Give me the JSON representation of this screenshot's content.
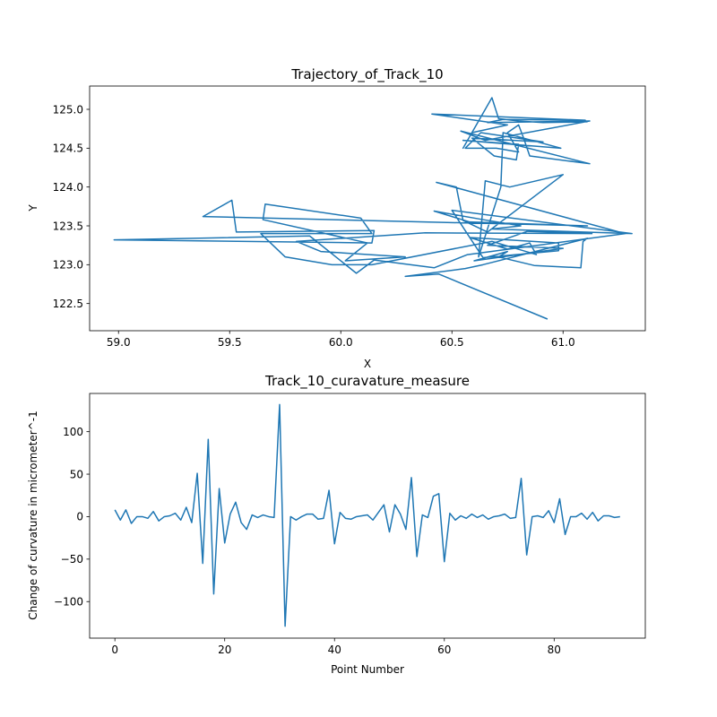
{
  "chart_data": [
    {
      "type": "line",
      "title": "Trajectory_of_Track_10",
      "xlabel": "X",
      "ylabel": "Y",
      "xlim": [
        58.87,
        61.37
      ],
      "ylim": [
        122.15,
        125.3
      ],
      "xticks": [
        59.0,
        59.5,
        60.0,
        60.5,
        61.0
      ],
      "xtick_labels": [
        "59.0",
        "59.5",
        "60.0",
        "60.5",
        "61.0"
      ],
      "yticks": [
        122.5,
        123.0,
        123.5,
        124.0,
        124.5,
        125.0
      ],
      "ytick_labels": [
        "122.5",
        "123.0",
        "123.5",
        "124.0",
        "124.5",
        "125.0"
      ],
      "color": "#1f77b4",
      "series": [
        {
          "x": [
            60.93,
            60.44,
            60.29,
            60.56,
            60.64,
            61.11,
            61.09,
            61.08,
            60.87,
            60.71,
            60.75,
            60.6,
            61.0,
            60.66,
            60.84,
            61.13,
            60.38,
            59.8,
            59.91,
            60.29,
            60.02,
            60.12,
            59.65,
            59.66,
            60.09,
            60.14,
            59.64,
            59.75,
            59.96,
            60.14,
            60.68,
            60.88,
            60.85,
            60.75,
            60.58,
            60.98,
            60.98,
            60.64,
            60.5,
            61.31,
            60.68,
            60.81,
            60.64,
            60.42,
            60.58,
            61.11,
            59.38,
            59.51,
            59.53,
            60.15,
            60.14,
            58.98,
            59.86,
            60.07,
            60.15,
            60.42,
            60.57,
            61.28,
            60.43,
            60.52,
            60.55,
            60.66,
            61.0,
            60.76,
            60.65,
            60.62,
            60.72,
            60.73,
            60.99,
            60.55,
            60.8,
            60.79,
            60.69,
            60.59,
            60.91,
            60.63,
            60.56,
            60.7,
            60.8,
            60.75,
            60.8,
            60.82,
            60.85,
            61.12,
            60.54,
            60.65,
            61.12,
            60.66,
            60.73,
            61.1,
            60.41,
            60.75,
            60.59,
            60.55,
            60.68,
            60.71,
            60.8,
            60.91,
            61.11
          ],
          "y": [
            122.3,
            122.88,
            122.85,
            122.95,
            123.0,
            123.34,
            123.3,
            122.96,
            122.99,
            123.1,
            123.17,
            123.05,
            123.21,
            123.25,
            123.43,
            123.4,
            123.41,
            123.3,
            123.17,
            123.1,
            123.05,
            123.28,
            123.58,
            123.78,
            123.6,
            123.4,
            123.4,
            123.1,
            123.0,
            123.0,
            123.3,
            123.13,
            123.28,
            123.2,
            123.35,
            123.28,
            123.18,
            123.09,
            123.7,
            123.4,
            123.46,
            123.5,
            123.58,
            123.69,
            123.55,
            123.5,
            123.62,
            123.83,
            123.42,
            123.44,
            123.28,
            123.32,
            123.37,
            122.89,
            123.06,
            122.96,
            123.13,
            123.4,
            124.06,
            124.0,
            123.57,
            123.42,
            124.16,
            124.0,
            124.08,
            123.1,
            124.0,
            124.7,
            124.5,
            124.6,
            124.55,
            124.35,
            124.4,
            124.63,
            124.58,
            124.7,
            124.5,
            124.5,
            124.45,
            124.7,
            124.8,
            124.65,
            124.4,
            124.3,
            124.72,
            124.6,
            124.85,
            124.83,
            124.87,
            124.86,
            124.94,
            124.8,
            124.7,
            124.5,
            125.15,
            124.88,
            124.85,
            124.83,
            124.84
          ]
        }
      ]
    },
    {
      "type": "line",
      "title": "Track_10_curavature_measure",
      "xlabel": "Point Number",
      "ylabel": "Change of curvature in micrometer^-1",
      "xlim": [
        -4.6,
        96.6
      ],
      "ylim": [
        -143,
        145
      ],
      "xticks": [
        0,
        20,
        40,
        60,
        80
      ],
      "xtick_labels": [
        "0",
        "20",
        "40",
        "60",
        "80"
      ],
      "yticks": [
        -100,
        -50,
        0,
        50,
        100
      ],
      "ytick_labels": [
        "−100",
        "−50",
        "0",
        "50",
        "100"
      ],
      "color": "#1f77b4",
      "series": [
        {
          "x": [
            0,
            1,
            2,
            3,
            4,
            5,
            6,
            7,
            8,
            9,
            10,
            11,
            12,
            13,
            14,
            15,
            16,
            17,
            18,
            19,
            20,
            21,
            22,
            23,
            24,
            25,
            26,
            27,
            28,
            29,
            30,
            31,
            32,
            33,
            34,
            35,
            36,
            37,
            38,
            39,
            40,
            41,
            42,
            43,
            44,
            45,
            46,
            47,
            48,
            49,
            50,
            51,
            52,
            53,
            54,
            55,
            56,
            57,
            58,
            59,
            60,
            61,
            62,
            63,
            64,
            65,
            66,
            67,
            68,
            69,
            70,
            71,
            72,
            73,
            74,
            75,
            76,
            77,
            78,
            79,
            80,
            81,
            82,
            83,
            84,
            85,
            86,
            87,
            88,
            89,
            90,
            91,
            92
          ],
          "y": [
            8,
            -4,
            8,
            -8,
            0,
            0,
            -2,
            6,
            -5,
            0,
            1,
            4,
            -4,
            11,
            -7,
            51,
            -55,
            91,
            -91,
            33,
            -31,
            3,
            17,
            -7,
            -15,
            2,
            -1,
            2,
            0,
            -1,
            132,
            -129,
            0,
            -4,
            0,
            3,
            3,
            -3,
            -2,
            31,
            -32,
            5,
            -2,
            -3,
            0,
            1,
            2,
            -4,
            5,
            14,
            -18,
            14,
            3,
            -15,
            46,
            -47,
            2,
            -1,
            24,
            27,
            -53,
            4,
            -4,
            1,
            -2,
            3,
            -1,
            2,
            -3,
            0,
            1,
            3,
            -2,
            -1,
            45,
            -45,
            0,
            1,
            -1,
            7,
            -7,
            21,
            -21,
            0,
            0,
            4,
            -3,
            5,
            -5,
            1,
            1,
            -1,
            0
          ]
        }
      ]
    }
  ]
}
